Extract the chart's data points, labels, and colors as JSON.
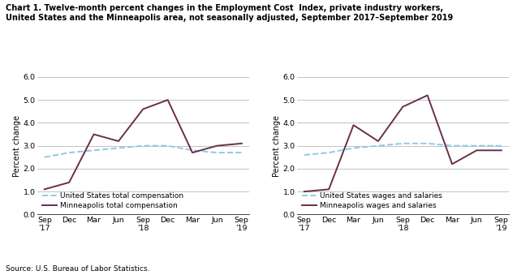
{
  "title_line1": "Chart 1. Twelve-month percent changes in the Employment Cost  Index, private industry workers,",
  "title_line2": "United States and the Minneapolis area, not seasonally adjusted, September 2017–September 2019",
  "source": "Source: U.S. Bureau of Labor Statistics.",
  "ylabel": "Percent change",
  "xlabels": [
    "Sep\n'17",
    "Dec",
    "Mar",
    "Jun",
    "Sep\n'18",
    "Dec",
    "Mar",
    "Jun",
    "Sep\n'19"
  ],
  "ylim": [
    0.0,
    6.0
  ],
  "yticks": [
    0.0,
    1.0,
    2.0,
    3.0,
    4.0,
    5.0,
    6.0
  ],
  "left_us_comp": [
    2.5,
    2.7,
    2.8,
    2.9,
    3.0,
    3.0,
    2.8,
    2.7,
    2.7
  ],
  "left_mpls_comp": [
    1.1,
    1.4,
    3.5,
    3.2,
    4.6,
    5.0,
    2.7,
    3.0,
    3.1
  ],
  "right_us_wages": [
    2.6,
    2.7,
    2.9,
    3.0,
    3.1,
    3.1,
    3.0,
    3.0,
    3.0
  ],
  "right_mpls_wages": [
    1.0,
    1.1,
    3.9,
    3.2,
    4.7,
    5.2,
    2.2,
    2.8,
    2.8
  ],
  "us_color": "#8ecae6",
  "mpls_color": "#6b2d4e",
  "us_linestyle": "--",
  "mpls_linestyle": "-",
  "linewidth": 1.4,
  "title_fontsize": 7.0,
  "axis_label_fontsize": 7.0,
  "tick_fontsize": 6.8,
  "legend_fontsize": 6.5,
  "source_fontsize": 6.5
}
